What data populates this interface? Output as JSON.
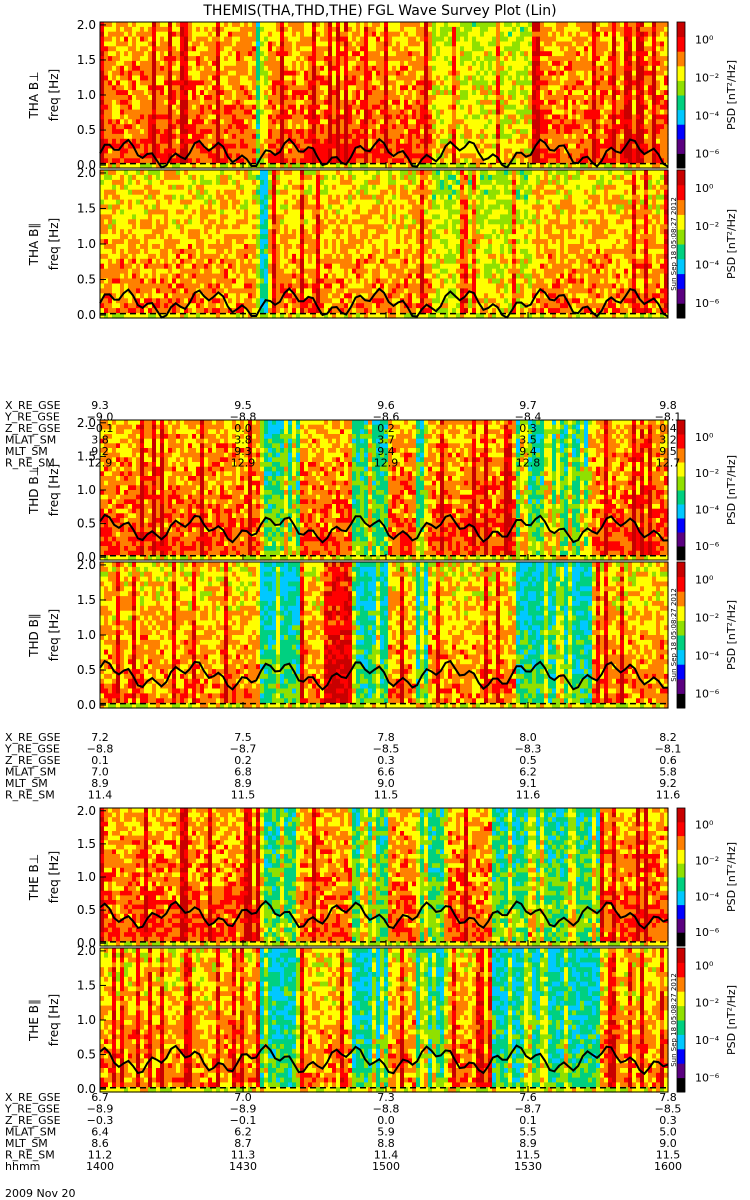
{
  "figure": {
    "title": "THEMIS(THA,THD,THE) FGL Wave Survey Plot (Lin)",
    "date_label": "2009 Nov 20",
    "stamp": "Sun Sep 18 05:08:27 2012"
  },
  "colorbar": {
    "label": "PSD [nT²/Hz]",
    "ticks": [
      "10⁰",
      "10⁻²",
      "10⁻⁴",
      "10⁻⁶"
    ],
    "colors": [
      "#000000",
      "#5a0080",
      "#0000ff",
      "#00c8ff",
      "#00d080",
      "#90e000",
      "#ffff00",
      "#ff8000",
      "#ff0000",
      "#c80000"
    ]
  },
  "chart_data": [
    {
      "type": "heatmap",
      "title": "THEMIS(THA,THD,THE) FGL Wave Survey Plot (Lin)",
      "probes": [
        {
          "name": "THA",
          "panels": [
            {
              "ylabel": "THA B⊥",
              "yunit": "freq [Hz]"
            },
            {
              "ylabel": "THA B∥",
              "yunit": "freq [Hz]"
            }
          ],
          "yticks": [
            "2.0",
            "1.5",
            "1.0",
            "0.5",
            "0.0"
          ],
          "ylim": [
            0,
            2.0
          ],
          "ephemeris": [
            {
              "name": "X_RE_GSE",
              "values": [
                "9.3",
                "9.5",
                "9.6",
                "9.7",
                "9.8"
              ]
            },
            {
              "name": "Y_RE_GSE",
              "values": [
                "−9.0",
                "−8.8",
                "−8.6",
                "−8.4",
                "−8.1"
              ]
            },
            {
              "name": "Z_RE_GSE",
              "values": [
                "−0.1",
                "0.0",
                "0.2",
                "0.3",
                "0.4"
              ]
            },
            {
              "name": "MLAT_SM",
              "values": [
                "3.8",
                "3.8",
                "3.7",
                "3.5",
                "3.2"
              ]
            },
            {
              "name": "MLT_SM",
              "values": [
                "9.2",
                "9.3",
                "9.4",
                "9.4",
                "9.5"
              ]
            },
            {
              "name": "R_RE_SM",
              "values": [
                "12.9",
                "12.9",
                "12.9",
                "12.8",
                "12.7"
              ]
            }
          ]
        },
        {
          "name": "THD",
          "panels": [
            {
              "ylabel": "THD B⊥",
              "yunit": "freq [Hz]"
            },
            {
              "ylabel": "THD B∥",
              "yunit": "freq [Hz]"
            }
          ],
          "yticks": [
            "2.0",
            "1.5",
            "1.0",
            "0.5",
            "0.0"
          ],
          "ylim": [
            0,
            2.0
          ],
          "ephemeris": [
            {
              "name": "X_RE_GSE",
              "values": [
                "7.2",
                "7.5",
                "7.8",
                "8.0",
                "8.2"
              ]
            },
            {
              "name": "Y_RE_GSE",
              "values": [
                "−8.8",
                "−8.7",
                "−8.5",
                "−8.3",
                "−8.1"
              ]
            },
            {
              "name": "Z_RE_GSE",
              "values": [
                "0.1",
                "0.2",
                "0.3",
                "0.5",
                "0.6"
              ]
            },
            {
              "name": "MLAT_SM",
              "values": [
                "7.0",
                "6.8",
                "6.6",
                "6.2",
                "5.8"
              ]
            },
            {
              "name": "MLT_SM",
              "values": [
                "8.9",
                "8.9",
                "9.0",
                "9.1",
                "9.2"
              ]
            },
            {
              "name": "R_RE_SM",
              "values": [
                "11.4",
                "11.5",
                "11.5",
                "11.6",
                "11.6"
              ]
            }
          ]
        },
        {
          "name": "THE",
          "panels": [
            {
              "ylabel": "THE B⊥",
              "yunit": "freq [Hz]"
            },
            {
              "ylabel": "THE B∥",
              "yunit": "freq [Hz]"
            }
          ],
          "yticks": [
            "2.0",
            "1.5",
            "1.0",
            "0.5",
            "0.0"
          ],
          "ylim": [
            0,
            2.0
          ],
          "ephemeris": [
            {
              "name": "X_RE_GSE",
              "values": [
                "6.7",
                "7.0",
                "7.3",
                "7.6",
                "7.8"
              ]
            },
            {
              "name": "Y_RE_GSE",
              "values": [
                "−8.9",
                "−8.9",
                "−8.8",
                "−8.7",
                "−8.5"
              ]
            },
            {
              "name": "Z_RE_GSE",
              "values": [
                "−0.3",
                "−0.1",
                "0.0",
                "0.1",
                "0.3"
              ]
            },
            {
              "name": "MLAT_SM",
              "values": [
                "6.4",
                "6.2",
                "5.9",
                "5.5",
                "5.0"
              ]
            },
            {
              "name": "MLT_SM",
              "values": [
                "8.6",
                "8.7",
                "8.8",
                "8.9",
                "9.0"
              ]
            },
            {
              "name": "R_RE_SM",
              "values": [
                "11.2",
                "11.3",
                "11.4",
                "11.5",
                "11.5"
              ]
            },
            {
              "name": "hhmm",
              "values": [
                "1400",
                "1430",
                "1500",
                "1530",
                "1600"
              ]
            }
          ]
        }
      ],
      "time_ticks": [
        "1400",
        "1430",
        "1500",
        "1530",
        "1600"
      ],
      "colorbar_range_exponent": [
        -6,
        1
      ]
    }
  ]
}
